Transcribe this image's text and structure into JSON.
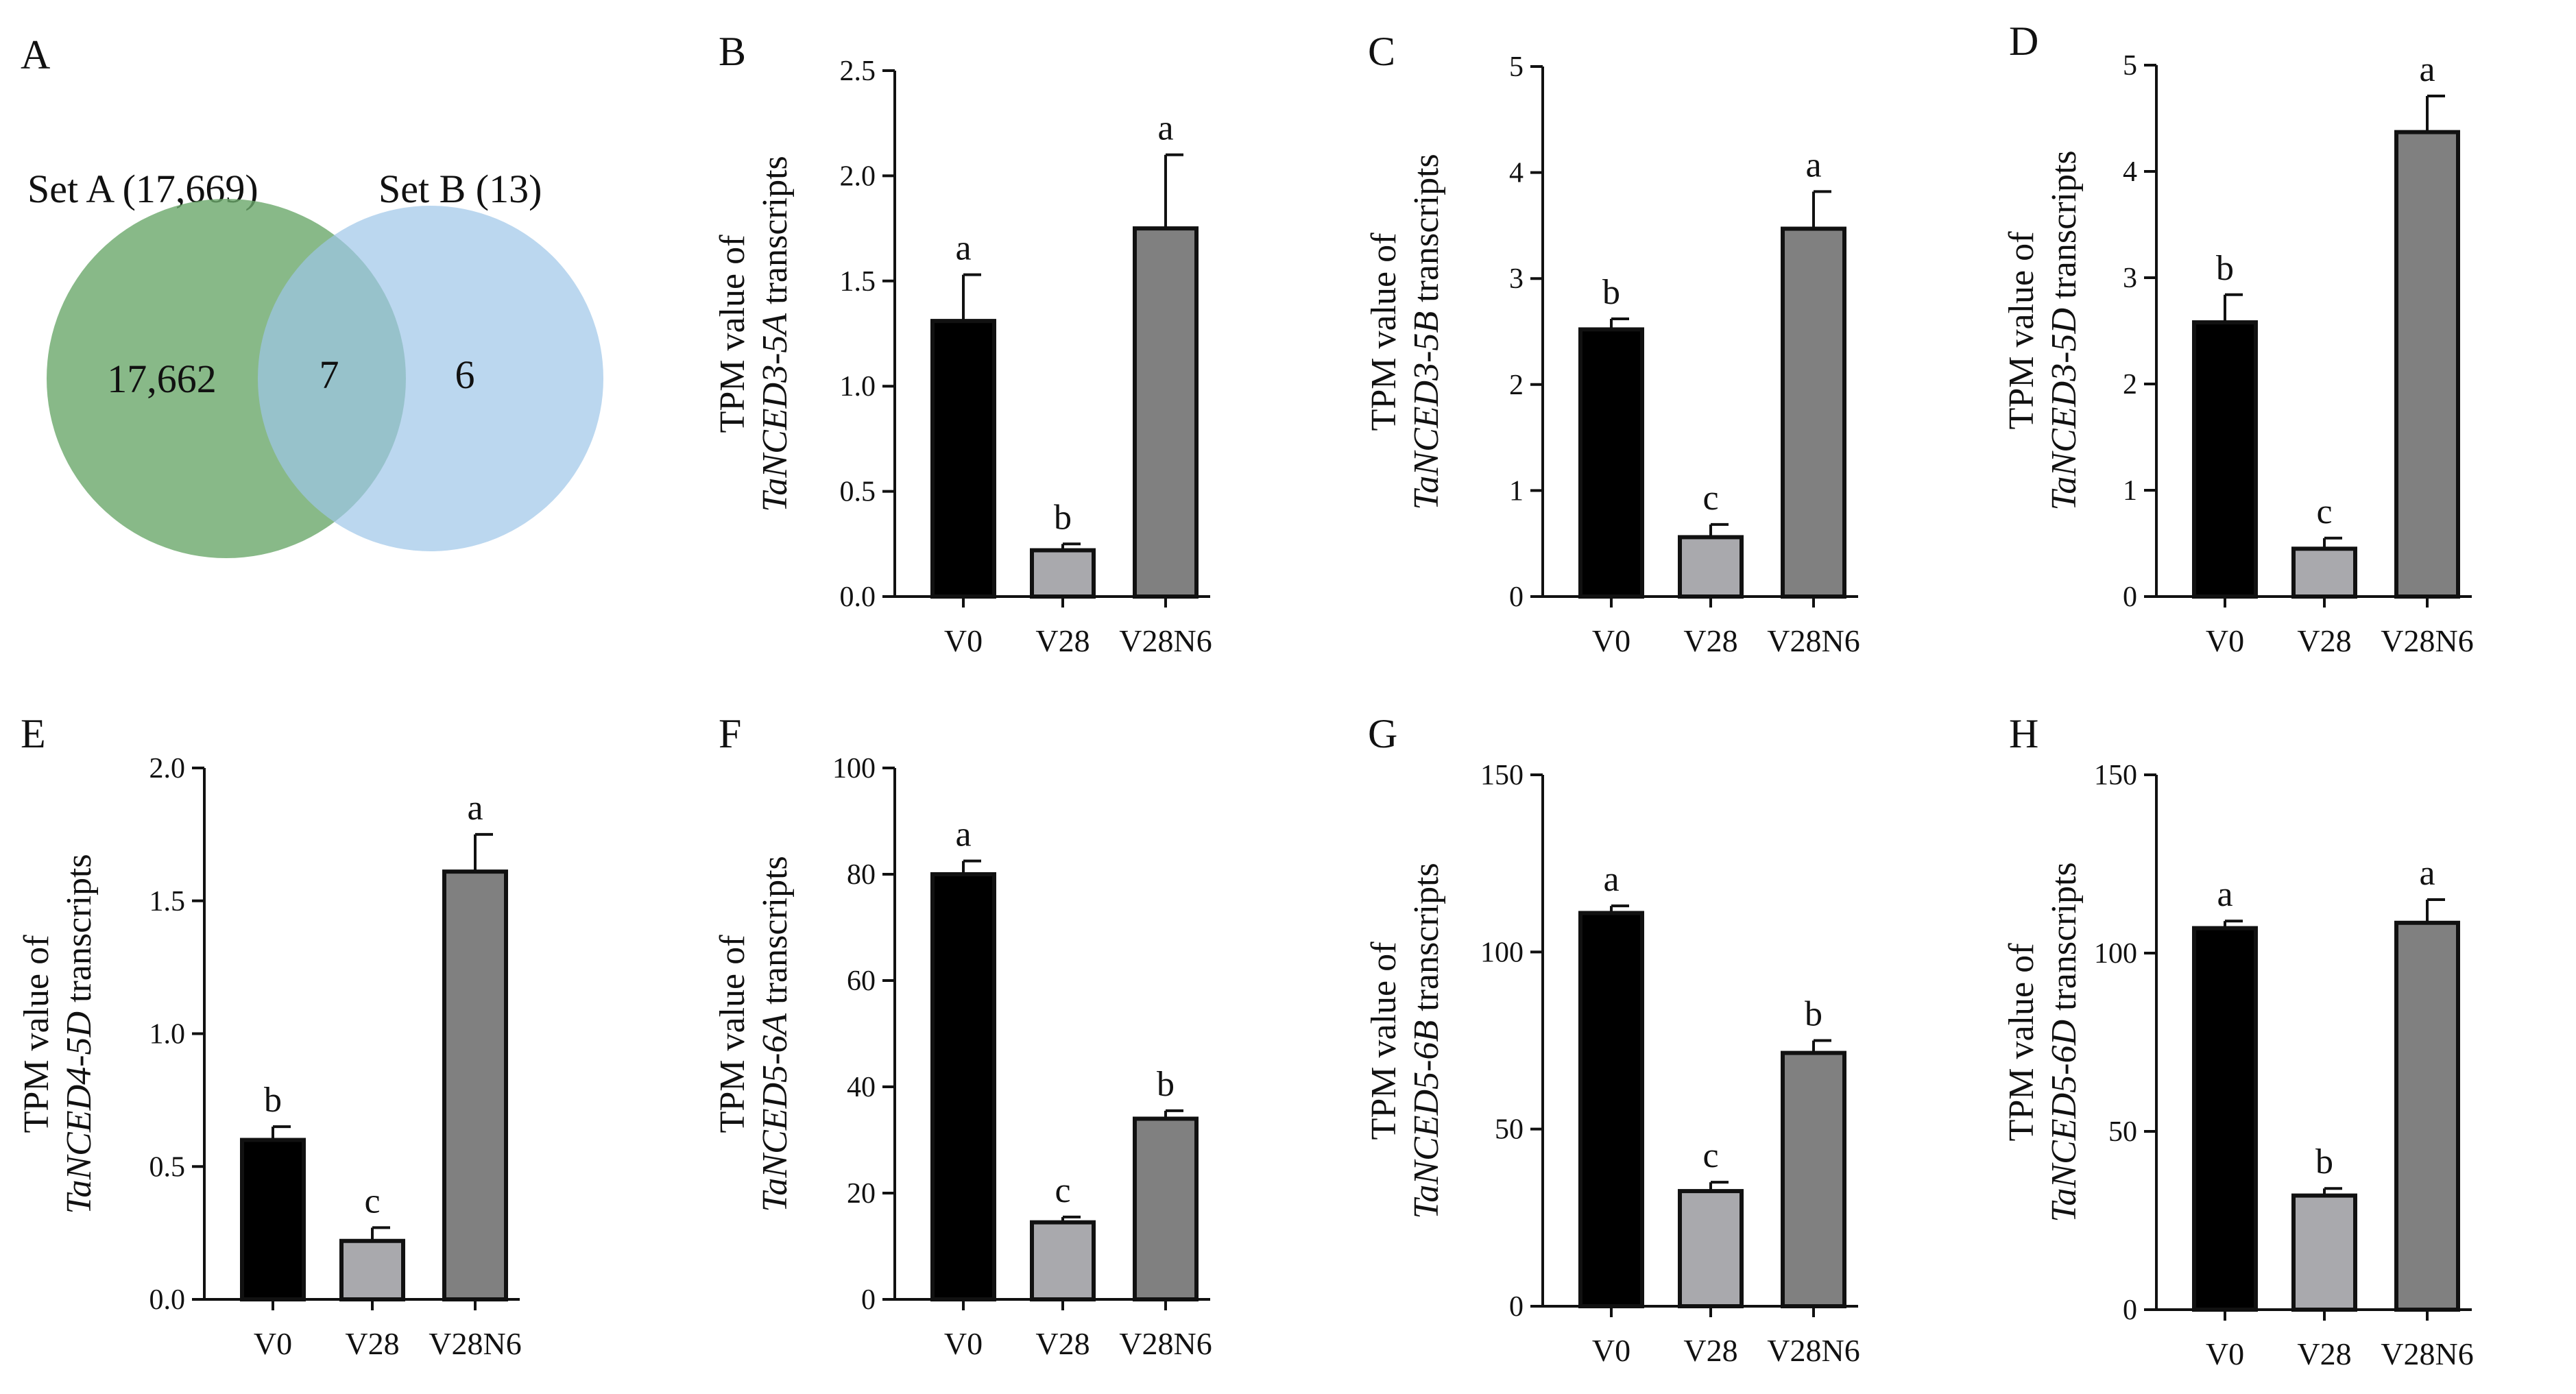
{
  "venn": {
    "panel": "A",
    "set_a_label": "Set A (17,669)",
    "set_b_label": "Set B (13)",
    "only_a": "17,662",
    "overlap": "7",
    "only_b": "6",
    "colors": {
      "set_a": "#6aa86a",
      "set_b": "#9ec6e8"
    }
  },
  "colors": {
    "V0": "#000000",
    "V28": "#a9a9ad",
    "V28N6": "#808080"
  },
  "chart_data": [
    {
      "panel": "B",
      "type": "bar",
      "gene": "TaNCED3-5A",
      "ylabel_prefix": "TPM value of",
      "ylabel_suffix": "transcripts",
      "categories": [
        "V0",
        "V28",
        "V28N6"
      ],
      "values": [
        1.31,
        0.22,
        1.75
      ],
      "errors": [
        0.22,
        0.03,
        0.35
      ],
      "letters": [
        "a",
        "b",
        "a"
      ],
      "ylim": [
        0,
        2.5
      ],
      "ticks": [
        "0.0",
        "0.5",
        "1.0",
        "1.5",
        "2.0",
        "2.5"
      ]
    },
    {
      "panel": "C",
      "type": "bar",
      "gene": "TaNCED3-5B",
      "ylabel_prefix": "TPM value of",
      "ylabel_suffix": "transcripts",
      "categories": [
        "V0",
        "V28",
        "V28N6"
      ],
      "values": [
        2.52,
        0.56,
        3.47
      ],
      "errors": [
        0.1,
        0.12,
        0.35
      ],
      "letters": [
        "b",
        "c",
        "a"
      ],
      "ylim": [
        0,
        5
      ],
      "ticks": [
        "0",
        "1",
        "2",
        "3",
        "4",
        "5"
      ]
    },
    {
      "panel": "D",
      "type": "bar",
      "gene": "TaNCED3-5D",
      "ylabel_prefix": "TPM value of",
      "ylabel_suffix": "transcripts",
      "categories": [
        "V0",
        "V28",
        "V28N6"
      ],
      "values": [
        2.58,
        0.45,
        4.37
      ],
      "errors": [
        0.26,
        0.1,
        0.34
      ],
      "letters": [
        "b",
        "c",
        "a"
      ],
      "ylim": [
        0,
        5
      ],
      "ticks": [
        "0",
        "1",
        "2",
        "3",
        "4",
        "5"
      ]
    },
    {
      "panel": "E",
      "type": "bar",
      "gene": "TaNCED4-5D",
      "ylabel_prefix": "TPM value of",
      "ylabel_suffix": "transcripts",
      "categories": [
        "V0",
        "V28",
        "V28N6"
      ],
      "values": [
        0.6,
        0.22,
        1.61
      ],
      "errors": [
        0.05,
        0.05,
        0.14
      ],
      "letters": [
        "b",
        "c",
        "a"
      ],
      "ylim": [
        0,
        2
      ],
      "ticks": [
        "0.0",
        "0.5",
        "1.0",
        "1.5",
        "2.0"
      ]
    },
    {
      "panel": "F",
      "type": "bar",
      "gene": "TaNCED5-6A",
      "ylabel_prefix": "TPM value of",
      "ylabel_suffix": "transcripts",
      "categories": [
        "V0",
        "V28",
        "V28N6"
      ],
      "values": [
        80,
        14.5,
        34
      ],
      "errors": [
        2.5,
        1,
        1.5
      ],
      "letters": [
        "a",
        "c",
        "b"
      ],
      "ylim": [
        0,
        100
      ],
      "ticks": [
        "0",
        "20",
        "40",
        "60",
        "80",
        "100"
      ]
    },
    {
      "panel": "G",
      "type": "bar",
      "gene": "TaNCED5-6B",
      "ylabel_prefix": "TPM value of",
      "ylabel_suffix": "transcripts",
      "categories": [
        "V0",
        "V28",
        "V28N6"
      ],
      "values": [
        111,
        32.5,
        71.5
      ],
      "errors": [
        2,
        2.5,
        3.5
      ],
      "letters": [
        "a",
        "c",
        "b"
      ],
      "ylim": [
        0,
        150
      ],
      "ticks": [
        "0",
        "50",
        "100",
        "150"
      ]
    },
    {
      "panel": "H",
      "type": "bar",
      "gene": "TaNCED5-6D",
      "ylabel_prefix": "TPM value of",
      "ylabel_suffix": "transcripts",
      "categories": [
        "V0",
        "V28",
        "V28N6"
      ],
      "values": [
        107,
        32,
        108.5
      ],
      "errors": [
        2,
        2,
        6.5
      ],
      "letters": [
        "a",
        "b",
        "a"
      ],
      "ylim": [
        0,
        150
      ],
      "ticks": [
        "0",
        "50",
        "100",
        "150"
      ]
    }
  ]
}
